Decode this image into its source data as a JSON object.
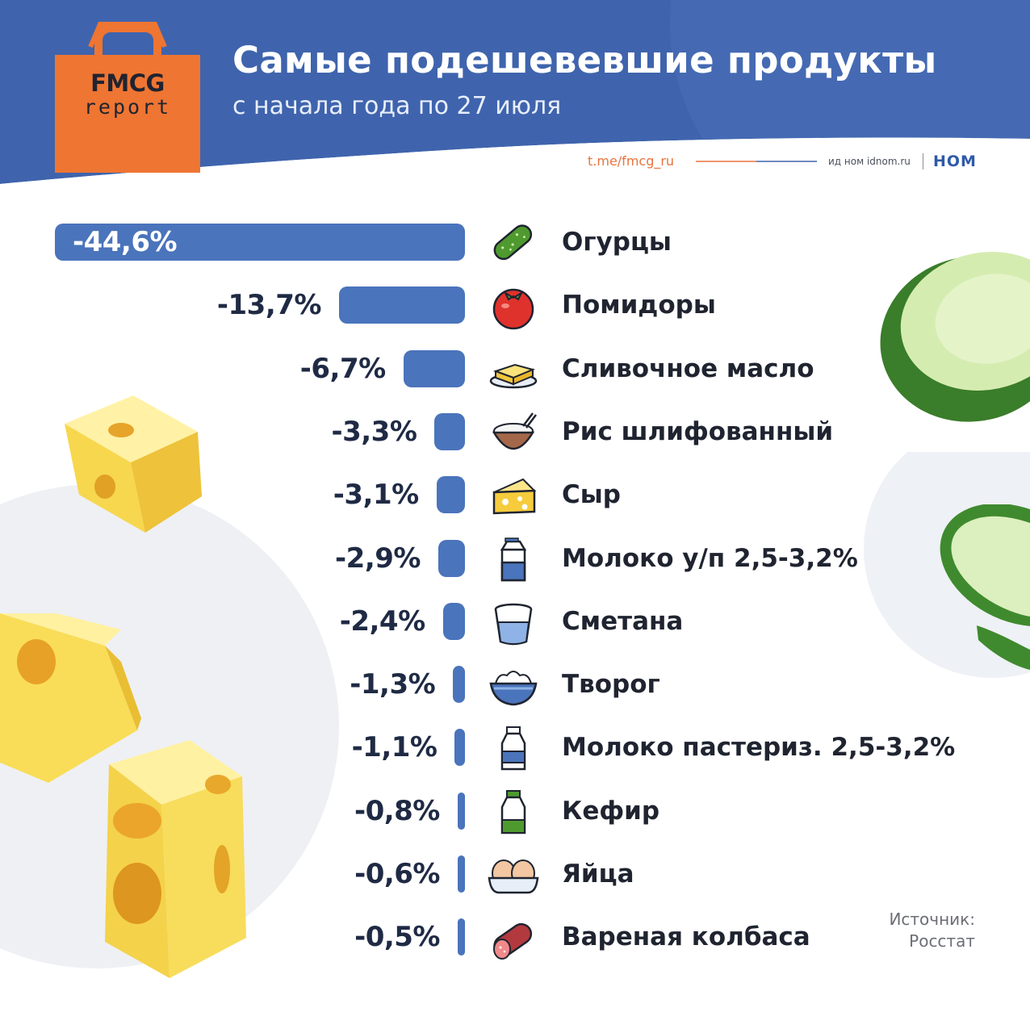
{
  "header": {
    "title": "Самые подешевевшие продукты",
    "subtitle": "с начала года по 27 июля",
    "telegram": "t.me/fmcg_ru",
    "idnom": "ид ном idnom.ru",
    "nom": "НОМ"
  },
  "logo": {
    "line1": "FMCG",
    "line2": "report"
  },
  "source": "Источник:\nРосстат",
  "colors": {
    "header_bg": "#3f64ad",
    "bar": "#4a74bb",
    "logo_bag": "#ef7532",
    "text_dark": "#1f2430",
    "accent_orange": "#e8733d"
  },
  "chart_data": {
    "type": "bar",
    "orientation": "horizontal",
    "title": "Самые подешевевшие продукты",
    "subtitle": "с начала года по 27 июля",
    "categories": [
      "Огурцы",
      "Помидоры",
      "Сливочное масло",
      "Рис шлифованный",
      "Сыр",
      "Молоко у/п 2,5-3,2%",
      "Сметана",
      "Творог",
      "Молоко пастериз. 2,5-3,2%",
      "Кефир",
      "Яйца",
      "Вареная колбаса"
    ],
    "values": [
      -44.6,
      -13.7,
      -6.7,
      -3.3,
      -3.1,
      -2.9,
      -2.4,
      -1.3,
      -1.1,
      -0.8,
      -0.6,
      -0.5
    ],
    "labels": [
      "-44,6%",
      "-13,7%",
      "-6,7%",
      "-3,3%",
      "-3,1%",
      "-2,9%",
      "-2,4%",
      "-1,3%",
      "-1,1%",
      "-0,8%",
      "-0,6%",
      "-0,5%"
    ],
    "icons": [
      "cucumber-icon",
      "tomato-icon",
      "butter-icon",
      "rice-bowl-icon",
      "cheese-icon",
      "milk-carton-icon",
      "sour-cream-cup-icon",
      "cottage-cheese-bowl-icon",
      "milk-bottle-icon",
      "kefir-bottle-icon",
      "eggs-icon",
      "sausage-icon"
    ],
    "unit": "%",
    "source": "Росстат"
  }
}
